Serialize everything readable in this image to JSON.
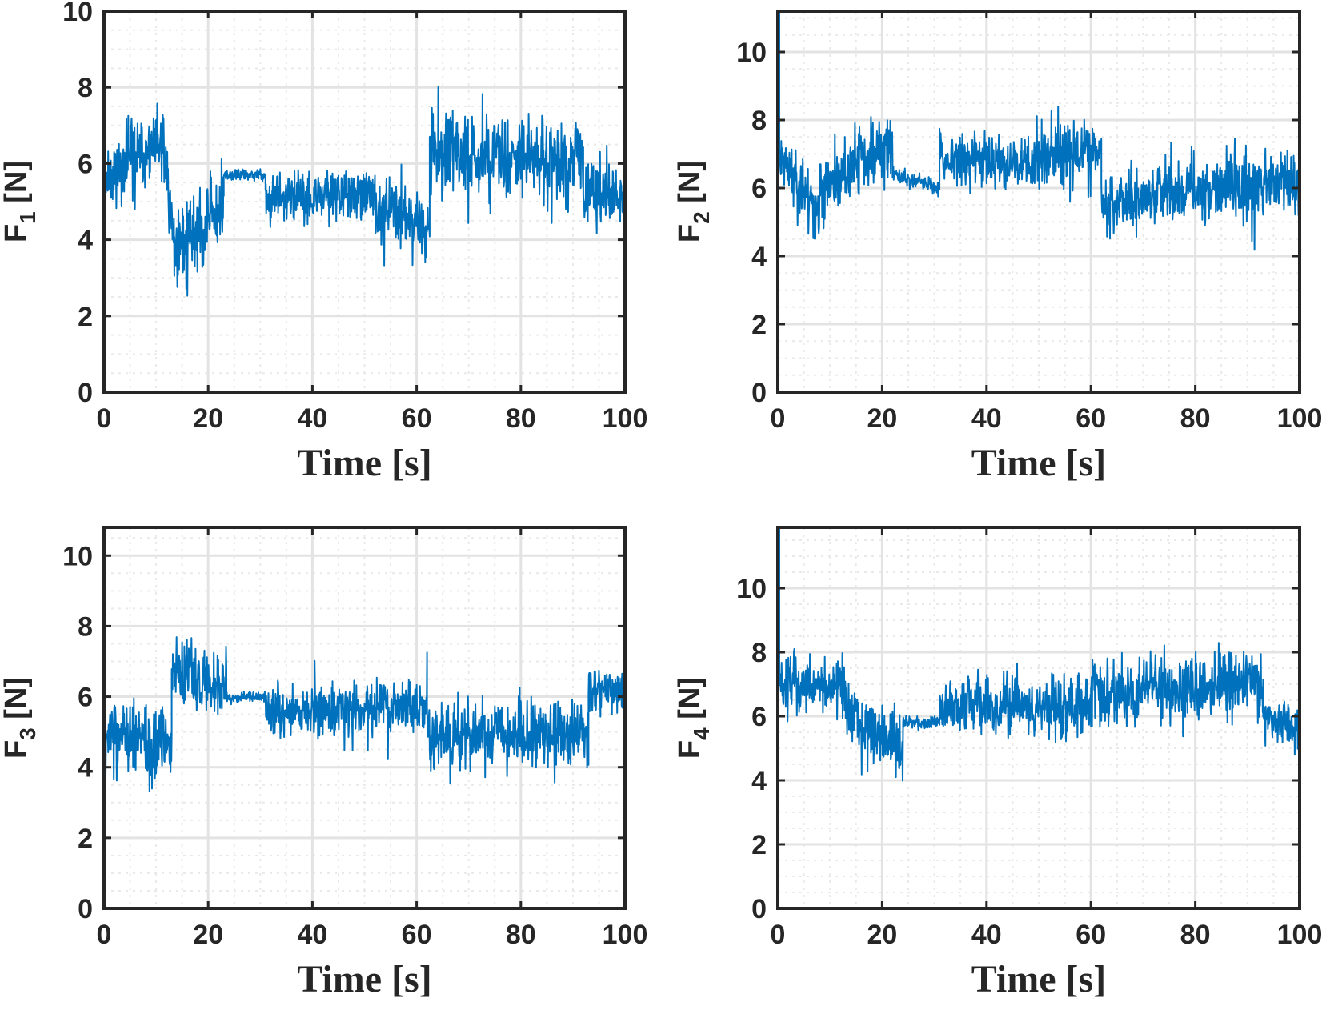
{
  "figure": {
    "series_color": "#0072bd",
    "axis_color": "#262626",
    "grid_color": "#e3e3e3"
  },
  "chart_data": [
    {
      "type": "line",
      "ylabel_main": "F",
      "ylabel_sub": "1",
      "ylabel_unit": " [N]",
      "xlabel": "Time [s]",
      "xlim": [
        0,
        100
      ],
      "ylim": [
        0,
        10
      ],
      "xticks": [
        0,
        20,
        40,
        60,
        80,
        100
      ],
      "yticks": [
        0,
        2,
        4,
        6,
        8,
        10
      ],
      "grid": true,
      "noise_seed": 11,
      "segments": [
        {
          "t0": 0,
          "t1": 0.3,
          "start": 0.1,
          "end": 9.9,
          "amp": 0.0
        },
        {
          "t0": 0.3,
          "t1": 11.5,
          "start": 5.7,
          "end": 6.5,
          "amp": 1.3
        },
        {
          "t0": 11.5,
          "t1": 13.5,
          "start": 6.2,
          "end": 3.9,
          "amp": 1.6
        },
        {
          "t0": 13.5,
          "t1": 23,
          "start": 3.8,
          "end": 4.8,
          "amp": 1.5
        },
        {
          "t0": 23,
          "t1": 31,
          "start": 5.7,
          "end": 5.7,
          "amp": 0.2
        },
        {
          "t0": 31,
          "t1": 52,
          "start": 5.0,
          "end": 5.2,
          "amp": 0.9
        },
        {
          "t0": 52,
          "t1": 62.5,
          "start": 4.9,
          "end": 4.3,
          "amp": 1.1
        },
        {
          "t0": 62.5,
          "t1": 92,
          "start": 6.3,
          "end": 6.1,
          "amp": 1.4
        },
        {
          "t0": 92,
          "t1": 100,
          "start": 5.1,
          "end": 5.2,
          "amp": 1.1
        }
      ]
    },
    {
      "type": "line",
      "ylabel_main": "F",
      "ylabel_sub": "2",
      "ylabel_unit": " [N]",
      "xlabel": "Time [s]",
      "xlim": [
        0,
        100
      ],
      "ylim": [
        0,
        11.2
      ],
      "xticks": [
        0,
        20,
        40,
        60,
        80,
        100
      ],
      "yticks": [
        0,
        2,
        4,
        6,
        8,
        10
      ],
      "grid": true,
      "noise_seed": 23,
      "segments": [
        {
          "t0": 0,
          "t1": 0.3,
          "start": 1.0,
          "end": 11.2,
          "amp": 0.0
        },
        {
          "t0": 0.3,
          "t1": 8,
          "start": 6.9,
          "end": 5.3,
          "amp": 1.2
        },
        {
          "t0": 8,
          "t1": 22,
          "start": 5.8,
          "end": 7.4,
          "amp": 1.3
        },
        {
          "t0": 22,
          "t1": 31,
          "start": 6.4,
          "end": 6.0,
          "amp": 0.3
        },
        {
          "t0": 31,
          "t1": 50,
          "start": 6.9,
          "end": 6.7,
          "amp": 1.0
        },
        {
          "t0": 50,
          "t1": 62,
          "start": 7.0,
          "end": 7.0,
          "amp": 1.2
        },
        {
          "t0": 62,
          "t1": 100,
          "start": 5.6,
          "end": 6.3,
          "amp": 1.3
        }
      ]
    },
    {
      "type": "line",
      "ylabel_main": "F",
      "ylabel_sub": "3",
      "ylabel_unit": " [N]",
      "xlabel": "Time [s]",
      "xlim": [
        0,
        100
      ],
      "ylim": [
        0,
        10.8
      ],
      "xticks": [
        0,
        20,
        40,
        60,
        80,
        100
      ],
      "yticks": [
        0,
        2,
        4,
        6,
        8,
        10
      ],
      "grid": true,
      "noise_seed": 37,
      "segments": [
        {
          "t0": 0,
          "t1": 0.3,
          "start": 1.0,
          "end": 10.8,
          "amp": 0.0
        },
        {
          "t0": 0.3,
          "t1": 13,
          "start": 5.0,
          "end": 4.5,
          "amp": 1.3
        },
        {
          "t0": 13,
          "t1": 23.5,
          "start": 6.7,
          "end": 6.3,
          "amp": 1.4
        },
        {
          "t0": 23.5,
          "t1": 31,
          "start": 6.0,
          "end": 6.0,
          "amp": 0.2
        },
        {
          "t0": 31,
          "t1": 62,
          "start": 5.6,
          "end": 5.7,
          "amp": 1.0
        },
        {
          "t0": 62,
          "t1": 93,
          "start": 4.9,
          "end": 4.9,
          "amp": 1.3
        },
        {
          "t0": 93,
          "t1": 100,
          "start": 6.3,
          "end": 6.1,
          "amp": 0.8
        }
      ]
    },
    {
      "type": "line",
      "ylabel_main": "F",
      "ylabel_sub": "4",
      "ylabel_unit": " [N]",
      "xlabel": "Time [s]",
      "xlim": [
        0,
        100
      ],
      "ylim": [
        0,
        11.9
      ],
      "xticks": [
        0,
        20,
        40,
        60,
        80,
        100
      ],
      "yticks": [
        0,
        2,
        4,
        6,
        8,
        10
      ],
      "grid": true,
      "noise_seed": 51,
      "segments": [
        {
          "t0": 0,
          "t1": 0.3,
          "start": 2.0,
          "end": 11.9,
          "amp": 0.0
        },
        {
          "t0": 0.3,
          "t1": 13,
          "start": 7.0,
          "end": 6.9,
          "amp": 1.2
        },
        {
          "t0": 13,
          "t1": 24,
          "start": 6.0,
          "end": 5.0,
          "amp": 1.4
        },
        {
          "t0": 24,
          "t1": 31,
          "start": 5.8,
          "end": 5.8,
          "amp": 0.25
        },
        {
          "t0": 31,
          "t1": 60,
          "start": 6.3,
          "end": 6.3,
          "amp": 1.2
        },
        {
          "t0": 60,
          "t1": 93,
          "start": 6.7,
          "end": 7.0,
          "amp": 1.4
        },
        {
          "t0": 93,
          "t1": 100,
          "start": 6.0,
          "end": 5.6,
          "amp": 1.0
        }
      ]
    }
  ]
}
